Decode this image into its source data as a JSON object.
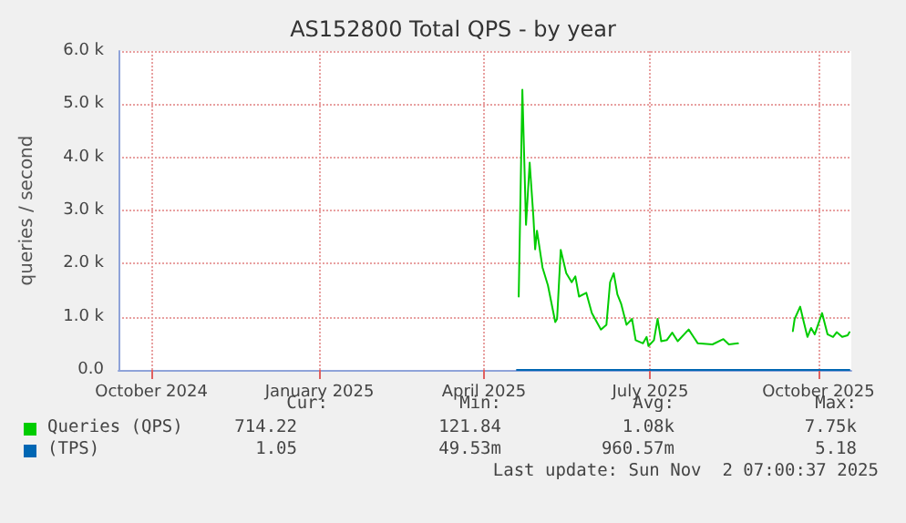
{
  "chart_data": {
    "type": "line",
    "title": "AS152800 Total QPS - by year",
    "ylabel": "queries / second",
    "xlim": [
      "2024-09-28",
      "2025-11-03"
    ],
    "xticks": [
      {
        "value": "2024-10-16",
        "label": "October 2024"
      },
      {
        "value": "2025-01-16",
        "label": "January 2025"
      },
      {
        "value": "2025-04-16",
        "label": "April 2025"
      },
      {
        "value": "2025-07-16",
        "label": "July 2025"
      },
      {
        "value": "2025-10-16",
        "label": "October 2025"
      }
    ],
    "ylim": [
      0,
      6000
    ],
    "yticks": [
      {
        "value": 0,
        "label": "0.0"
      },
      {
        "value": 1000,
        "label": "1.0 k"
      },
      {
        "value": 2000,
        "label": "2.0 k"
      },
      {
        "value": 3000,
        "label": "3.0 k"
      },
      {
        "value": 4000,
        "label": "4.0 k"
      },
      {
        "value": 5000,
        "label": "5.0 k"
      },
      {
        "value": 6000,
        "label": "6.0 k"
      }
    ],
    "grid": true,
    "legend": "bottom",
    "marker": "none",
    "line_style": "solid",
    "series": [
      {
        "name": "Queries (QPS)",
        "color": "#00cc00",
        "x": [
          "2025-05-05",
          "2025-05-07",
          "2025-05-09",
          "2025-05-11",
          "2025-05-13",
          "2025-05-14",
          "2025-05-15",
          "2025-05-18",
          "2025-05-21",
          "2025-05-25",
          "2025-05-26",
          "2025-05-28",
          "2025-05-31",
          "2025-06-03",
          "2025-06-05",
          "2025-06-07",
          "2025-06-11",
          "2025-06-14",
          "2025-06-19",
          "2025-06-22",
          "2025-06-24",
          "2025-06-26",
          "2025-06-28",
          "2025-06-30",
          "2025-07-03",
          "2025-07-06",
          "2025-07-08",
          "2025-07-12",
          "2025-07-14",
          "2025-07-15",
          "2025-07-18",
          "2025-07-20",
          "2025-07-22",
          "2025-07-25",
          "2025-07-28",
          "2025-07-31",
          "2025-08-06",
          "2025-08-11",
          "2025-08-19",
          "2025-08-25",
          "2025-08-28",
          "2025-09-02",
          "2025-09-15",
          "2025-10-02",
          "2025-10-03",
          "2025-10-06",
          "2025-10-08",
          "2025-10-10",
          "2025-10-12",
          "2025-10-14",
          "2025-10-18",
          "2025-10-21",
          "2025-10-24",
          "2025-10-26",
          "2025-10-29",
          "2025-11-01",
          "2025-11-02"
        ],
        "values": [
          1380,
          5270,
          2730,
          3900,
          2900,
          2270,
          2620,
          1930,
          1590,
          900,
          960,
          2260,
          1820,
          1650,
          1760,
          1380,
          1450,
          1070,
          760,
          850,
          1650,
          1820,
          1420,
          1250,
          850,
          960,
          560,
          500,
          620,
          450,
          560,
          960,
          540,
          560,
          700,
          540,
          760,
          500,
          480,
          580,
          480,
          500,
          null,
          730,
          960,
          1190,
          900,
          620,
          790,
          670,
          1070,
          670,
          620,
          710,
          620,
          650,
          710
        ]
      },
      {
        "name": "(TPS)",
        "color": "#0066b3",
        "x": [
          "2025-05-04",
          "2025-11-02"
        ],
        "values": [
          0,
          0
        ]
      }
    ],
    "annotations": [
      "Cur:",
      "Min:",
      "Avg:",
      "Max:",
      "714.22",
      "121.84",
      "1.08k",
      "7.75k",
      "1.05",
      "49.53m",
      "960.57m",
      "5.18",
      "Last update: Sun Nov  2 07:00:37 2025"
    ]
  }
}
